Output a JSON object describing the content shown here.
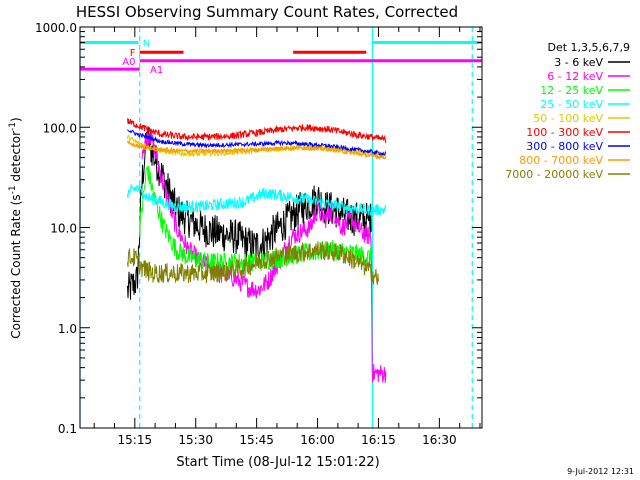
{
  "chart_data": {
    "type": "line",
    "title": "HESSI Observing Summary Count Rates, Corrected",
    "xlabel": "Start Time (08-Jul-12 15:01:22)",
    "ylabel_pre": "Corrected Count Rate (s",
    "ylabel_sup1": "-1",
    "ylabel_mid": " detector",
    "ylabel_sup2": "-1",
    "ylabel_post": ")",
    "yscale": "log",
    "ylim": [
      0.1,
      1000
    ],
    "xlim": [
      15.025,
      16.675
    ],
    "x_unit": "decimal hours UT",
    "y_ticks": [
      "0.1",
      "1.0",
      "10.0",
      "100.0",
      "1000.0"
    ],
    "x_ticks": [
      {
        "label": "15:15",
        "value": 15.25
      },
      {
        "label": "15:30",
        "value": 15.5
      },
      {
        "label": "15:45",
        "value": 15.75
      },
      {
        "label": "16:00",
        "value": 16.0
      },
      {
        "label": "16:15",
        "value": 16.25
      },
      {
        "label": "16:30",
        "value": 16.5
      }
    ],
    "legend_title": "Det 1,3,5,6,7,9",
    "legend_position": "right",
    "timestamp": "9-Jul-2012 12:31",
    "series": [
      {
        "name": "3 - 6 keV",
        "color": "#000000",
        "noise": 0.18,
        "points": [
          [
            15.22,
            2.3
          ],
          [
            15.26,
            3
          ],
          [
            15.28,
            30
          ],
          [
            15.3,
            80
          ],
          [
            15.33,
            50
          ],
          [
            15.37,
            30
          ],
          [
            15.42,
            15
          ],
          [
            15.47,
            12
          ],
          [
            15.52,
            10
          ],
          [
            15.57,
            9
          ],
          [
            15.62,
            8.5
          ],
          [
            15.67,
            8
          ],
          [
            15.71,
            7
          ],
          [
            15.74,
            6.5
          ],
          [
            15.78,
            7
          ],
          [
            15.82,
            9
          ],
          [
            15.88,
            12
          ],
          [
            15.94,
            16
          ],
          [
            15.98,
            18
          ],
          [
            16.0,
            20
          ],
          [
            16.03,
            16
          ],
          [
            16.07,
            15
          ],
          [
            16.12,
            13
          ],
          [
            16.17,
            12
          ],
          [
            16.2,
            12
          ],
          [
            16.22,
            12
          ]
        ]
      },
      {
        "name": "6 - 12 keV",
        "color": "#ff00ff",
        "noise": 0.1,
        "points": [
          [
            15.28,
            60
          ],
          [
            15.31,
            90
          ],
          [
            15.34,
            50
          ],
          [
            15.37,
            25
          ],
          [
            15.42,
            10
          ],
          [
            15.47,
            6
          ],
          [
            15.52,
            4.5
          ],
          [
            15.57,
            4
          ],
          [
            15.62,
            3.5
          ],
          [
            15.67,
            3
          ],
          [
            15.72,
            2.5
          ],
          [
            15.76,
            2.4
          ],
          [
            15.8,
            3
          ],
          [
            15.85,
            5
          ],
          [
            15.89,
            8
          ],
          [
            15.93,
            9
          ],
          [
            15.97,
            10
          ],
          [
            16.0,
            15
          ],
          [
            16.03,
            12
          ],
          [
            16.06,
            15
          ],
          [
            16.1,
            10
          ],
          [
            16.14,
            12
          ],
          [
            16.18,
            9
          ],
          [
            16.22,
            8
          ],
          [
            16.225,
            0.35
          ],
          [
            16.28,
            0.35
          ]
        ]
      },
      {
        "name": "12 - 25 keV",
        "color": "#00ff00",
        "noise": 0.1,
        "points": [
          [
            15.27,
            10
          ],
          [
            15.3,
            40
          ],
          [
            15.33,
            20
          ],
          [
            15.37,
            10
          ],
          [
            15.42,
            6
          ],
          [
            15.47,
            5
          ],
          [
            15.55,
            4.5
          ],
          [
            15.65,
            4.5
          ],
          [
            15.75,
            4.5
          ],
          [
            15.85,
            5
          ],
          [
            15.95,
            5.5
          ],
          [
            16.05,
            6
          ],
          [
            16.15,
            5.5
          ],
          [
            16.22,
            5
          ]
        ]
      },
      {
        "name": "25 - 50 keV",
        "color": "#00ffff",
        "noise": 0.06,
        "points": [
          [
            15.22,
            22
          ],
          [
            15.26,
            25
          ],
          [
            15.3,
            20
          ],
          [
            15.36,
            18
          ],
          [
            15.42,
            16
          ],
          [
            15.5,
            16
          ],
          [
            15.6,
            17
          ],
          [
            15.7,
            18
          ],
          [
            15.78,
            22
          ],
          [
            15.85,
            21
          ],
          [
            15.9,
            20
          ],
          [
            15.95,
            19
          ],
          [
            16.0,
            18
          ],
          [
            16.05,
            17
          ],
          [
            16.1,
            16
          ],
          [
            16.15,
            15.5
          ],
          [
            16.2,
            15
          ],
          [
            16.28,
            15
          ]
        ]
      },
      {
        "name": "50 - 100 keV",
        "color": "#ddcc00",
        "noise": 0.025,
        "points": [
          [
            15.22,
            80
          ],
          [
            15.26,
            70
          ],
          [
            15.3,
            65
          ],
          [
            15.36,
            58
          ],
          [
            15.42,
            55
          ],
          [
            15.5,
            54
          ],
          [
            15.6,
            55
          ],
          [
            15.7,
            57
          ],
          [
            15.8,
            60
          ],
          [
            15.9,
            62
          ],
          [
            16.0,
            63
          ],
          [
            16.1,
            60
          ],
          [
            16.2,
            55
          ],
          [
            16.28,
            53
          ]
        ]
      },
      {
        "name": "100 - 300 keV",
        "color": "#ff0000",
        "noise": 0.035,
        "points": [
          [
            15.22,
            115
          ],
          [
            15.26,
            105
          ],
          [
            15.3,
            95
          ],
          [
            15.36,
            85
          ],
          [
            15.45,
            80
          ],
          [
            15.55,
            80
          ],
          [
            15.65,
            82
          ],
          [
            15.75,
            88
          ],
          [
            15.85,
            95
          ],
          [
            15.95,
            100
          ],
          [
            16.05,
            95
          ],
          [
            16.15,
            85
          ],
          [
            16.22,
            80
          ],
          [
            16.28,
            75
          ]
        ]
      },
      {
        "name": "300 - 800 keV",
        "color": "#0000ff",
        "noise": 0.02,
        "points": [
          [
            15.22,
            95
          ],
          [
            15.26,
            85
          ],
          [
            15.3,
            80
          ],
          [
            15.36,
            72
          ],
          [
            15.45,
            68
          ],
          [
            15.55,
            66
          ],
          [
            15.65,
            67
          ],
          [
            15.75,
            68
          ],
          [
            15.85,
            70
          ],
          [
            15.95,
            68
          ],
          [
            16.05,
            65
          ],
          [
            16.15,
            60
          ],
          [
            16.22,
            57
          ],
          [
            16.28,
            54
          ]
        ]
      },
      {
        "name": "800 - 7000 keV",
        "color": "#ff9900",
        "noise": 0.02,
        "points": [
          [
            15.22,
            70
          ],
          [
            15.26,
            65
          ],
          [
            15.3,
            62
          ],
          [
            15.36,
            60
          ],
          [
            15.45,
            58
          ],
          [
            15.55,
            58
          ],
          [
            15.65,
            59
          ],
          [
            15.75,
            60
          ],
          [
            15.85,
            62
          ],
          [
            15.95,
            62
          ],
          [
            16.05,
            60
          ],
          [
            16.15,
            55
          ],
          [
            16.22,
            52
          ],
          [
            16.28,
            50
          ]
        ]
      },
      {
        "name": "7000 - 20000 keV",
        "color": "#808000",
        "noise": 0.1,
        "points": [
          [
            15.22,
            5
          ],
          [
            15.25,
            5
          ],
          [
            15.28,
            4
          ],
          [
            15.32,
            3.5
          ],
          [
            15.4,
            3.5
          ],
          [
            15.5,
            3.5
          ],
          [
            15.6,
            3.5
          ],
          [
            15.7,
            4
          ],
          [
            15.8,
            5
          ],
          [
            15.9,
            5.5
          ],
          [
            16.0,
            6
          ],
          [
            16.1,
            5.5
          ],
          [
            16.2,
            4
          ],
          [
            16.25,
            3
          ]
        ]
      }
    ],
    "flag_bars": [
      {
        "name": "N",
        "color": "#00ffff",
        "y": 700,
        "segments": [
          [
            15.025,
            15.265
          ],
          [
            16.225,
            16.675
          ]
        ],
        "label_x": 15.27
      },
      {
        "name": "F",
        "color": "#ff0000",
        "y": 560,
        "segments": [
          [
            15.27,
            15.45
          ],
          [
            15.9,
            16.2
          ]
        ],
        "label_x": 15.265
      },
      {
        "name": "A0",
        "color": "#ff00ff",
        "y": 460,
        "segments": [
          [
            15.27,
            16.675
          ]
        ],
        "label_x": 15.265
      },
      {
        "name": "A1",
        "color": "#ff00ff",
        "y": 380,
        "segments": [
          [
            15.025,
            15.27
          ]
        ],
        "label_x": 15.3
      }
    ],
    "vertical_markers": [
      {
        "x": 15.025,
        "color": "#00ffff",
        "style": "solid"
      },
      {
        "x": 15.27,
        "color": "#00ffff",
        "style": "dashed"
      },
      {
        "x": 16.225,
        "color": "#00ffff",
        "style": "solid"
      },
      {
        "x": 16.635,
        "color": "#00ffff",
        "style": "dashed"
      }
    ]
  }
}
